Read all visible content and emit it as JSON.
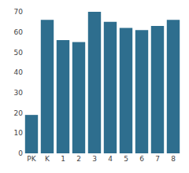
{
  "chart_data": {
    "type": "bar",
    "categories": [
      "PK",
      "K",
      "1",
      "2",
      "3",
      "4",
      "5",
      "6",
      "7",
      "8"
    ],
    "values": [
      19,
      66,
      56,
      55,
      70,
      65,
      62,
      61,
      63,
      66
    ],
    "color": "#2e6e8e",
    "ylim": [
      0,
      70
    ],
    "yticks": [
      0,
      10,
      20,
      30,
      40,
      50,
      60,
      70
    ],
    "grid": false
  }
}
